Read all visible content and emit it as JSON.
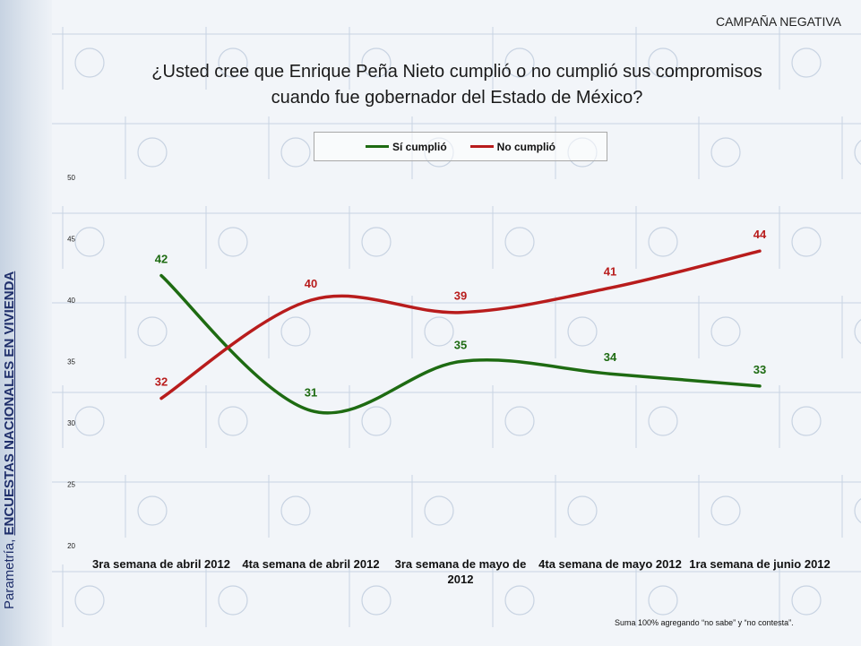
{
  "header": {
    "tag": "CAMPAÑA NEGATIVA"
  },
  "title_line1": "¿Usted cree que Enrique Peña Nieto cumplió o no cumplió sus compromisos",
  "title_line2": "cuando fue gobernador del Estado de México?",
  "side_label": {
    "normal": "Parametría, ",
    "bold": "ENCUESTAS NACIONALES EN VIVIENDA"
  },
  "footnote": "Suma 100%  agregando “no sabe” y “no contesta”.",
  "colors": {
    "green": "#1e6b12",
    "red": "#b81c1c",
    "background": "#f2f5f9"
  },
  "chart_data": {
    "type": "line",
    "categories": [
      "3ra semana de abril 2012",
      "4ta semana de abril 2012",
      "3ra semana de mayo de 2012",
      "4ta semana de mayo 2012",
      "1ra semana de junio 2012"
    ],
    "series": [
      {
        "name": "Sí cumplió",
        "values": [
          42,
          31,
          35,
          34,
          33
        ],
        "color": "#1e6b12"
      },
      {
        "name": "No cumplió",
        "values": [
          32,
          40,
          39,
          41,
          44
        ],
        "color": "#b81c1c"
      }
    ],
    "ylim": [
      20,
      50
    ],
    "yticks": [
      20,
      25,
      30,
      35,
      40,
      45,
      50
    ],
    "legend": "top-center",
    "grid": false,
    "data_labels": true,
    "smooth": true
  }
}
